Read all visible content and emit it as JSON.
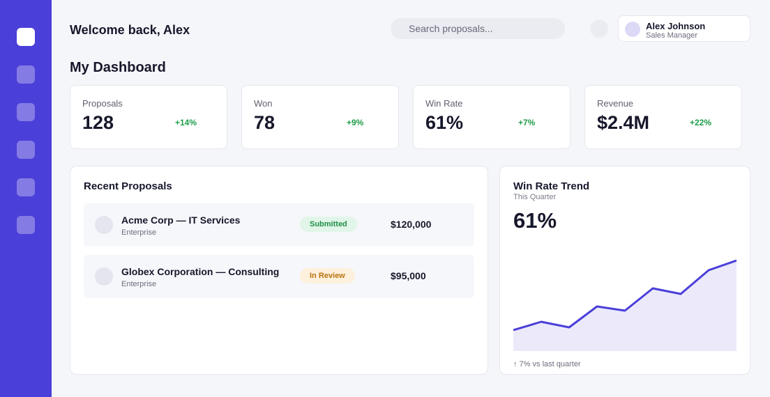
{
  "sidebar": {
    "items": [
      {
        "icon": "home-icon",
        "active": true
      },
      {
        "icon": "proposals-icon",
        "active": false
      },
      {
        "icon": "clients-icon",
        "active": false
      },
      {
        "icon": "reports-icon",
        "active": false
      },
      {
        "icon": "calendar-icon",
        "active": false
      },
      {
        "icon": "settings-icon",
        "active": false
      }
    ]
  },
  "header": {
    "welcome": "Welcome back, Alex",
    "search_placeholder": "Search proposals...",
    "user": {
      "name": "Alex Johnson",
      "role": "Sales Manager"
    }
  },
  "dashboard": {
    "title": "My Dashboard",
    "stats": [
      {
        "label": "Proposals",
        "value": "128",
        "delta": "+14%"
      },
      {
        "label": "Won",
        "value": "78",
        "delta": "+9%"
      },
      {
        "label": "Win Rate",
        "value": "61%",
        "delta": "+7%"
      },
      {
        "label": "Revenue",
        "value": "$2.4M",
        "delta": "+22%"
      }
    ]
  },
  "recent": {
    "title": "Recent Proposals",
    "rows": [
      {
        "name": "Acme Corp — IT Services",
        "segment": "Enterprise",
        "status": "Submitted",
        "amount": "$120,000"
      },
      {
        "name": "Globex Corporation — Consulting",
        "segment": "Enterprise",
        "status": "In Review",
        "amount": "$95,000"
      }
    ]
  },
  "trend": {
    "title": "Win Rate Trend",
    "subtitle": "This Quarter",
    "value": "61%",
    "footnote": "↑ 7% vs last quarter"
  },
  "colors": {
    "accent": "#4a3fd8",
    "positive": "#1f9d4a",
    "submitted_bg": "#e2f5e9",
    "review_bg": "#fdf0dc",
    "area_fill": "#ece9fb"
  },
  "chart_data": {
    "type": "area",
    "values": [
      30,
      42,
      34,
      64,
      58,
      90,
      82,
      116,
      130
    ],
    "ylim": [
      0,
      150
    ],
    "grid": false
  }
}
